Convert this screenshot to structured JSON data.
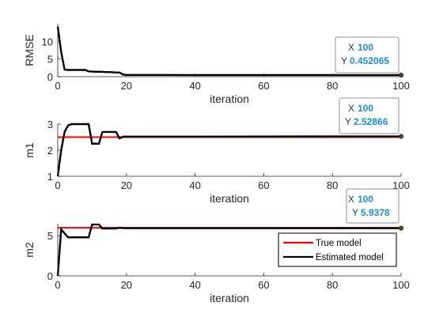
{
  "chart_data": [
    {
      "type": "line",
      "xlabel": "iteration",
      "ylabel": "RMSE",
      "xlim": [
        0,
        100
      ],
      "ylim": [
        0,
        15
      ],
      "xticks": [
        0,
        20,
        40,
        60,
        80,
        100
      ],
      "yticks": [
        0,
        5,
        10
      ],
      "grid": false,
      "series": [
        {
          "color": "#000000",
          "x": [
            0,
            1,
            2,
            3,
            4,
            5,
            6,
            7,
            8,
            9,
            10,
            11,
            12,
            13,
            14,
            15,
            16,
            17,
            18,
            19,
            20,
            30,
            40,
            50,
            60,
            70,
            80,
            90,
            100
          ],
          "y": [
            14.2,
            7.0,
            2.0,
            1.9,
            1.9,
            1.9,
            1.9,
            1.9,
            1.9,
            1.5,
            1.45,
            1.4,
            1.4,
            1.35,
            1.3,
            1.3,
            1.25,
            1.2,
            1.2,
            0.6,
            0.5,
            0.48,
            0.47,
            0.46,
            0.46,
            0.455,
            0.455,
            0.453,
            0.452065
          ]
        }
      ],
      "datatip": {
        "x_label": "X",
        "x_value": "100",
        "y_label": "Y",
        "y_value": "0.452065"
      }
    },
    {
      "type": "line",
      "xlabel": "iteration",
      "ylabel": "m1",
      "xlim": [
        0,
        100
      ],
      "ylim": [
        1,
        3
      ],
      "xticks": [
        0,
        20,
        40,
        60,
        80,
        100
      ],
      "yticks": [
        1,
        2,
        3
      ],
      "grid": false,
      "series": [
        {
          "color": "#ff0000",
          "x": [
            0,
            100
          ],
          "y": [
            2.5,
            2.5
          ]
        },
        {
          "color": "#000000",
          "x": [
            0,
            1,
            2,
            3,
            4,
            5,
            6,
            7,
            8,
            9,
            10,
            11,
            12,
            13,
            14,
            15,
            16,
            17,
            18,
            19,
            20,
            40,
            60,
            80,
            100
          ],
          "y": [
            1.0,
            2.0,
            2.7,
            2.95,
            3.0,
            3.0,
            3.0,
            3.0,
            3.0,
            3.0,
            2.25,
            2.25,
            2.25,
            2.7,
            2.7,
            2.7,
            2.7,
            2.7,
            2.45,
            2.52,
            2.52,
            2.52,
            2.525,
            2.528,
            2.52866
          ]
        }
      ],
      "datatip": {
        "x_label": "X",
        "x_value": "100",
        "y_label": "Y",
        "y_value": "2.52866"
      }
    },
    {
      "type": "line",
      "xlabel": "iteration",
      "ylabel": "m2",
      "xlim": [
        0,
        100
      ],
      "ylim": [
        0,
        6.5
      ],
      "xticks": [
        0,
        20,
        40,
        60,
        80,
        100
      ],
      "yticks": [
        0,
        5
      ],
      "grid": false,
      "legend_position": "bottom-right",
      "series": [
        {
          "name": "True model",
          "color": "#ff0000",
          "x": [
            0,
            100
          ],
          "y": [
            6.0,
            6.0
          ]
        },
        {
          "name": "Estimated model",
          "color": "#000000",
          "x": [
            0,
            1,
            2,
            3,
            4,
            5,
            6,
            7,
            8,
            9,
            10,
            11,
            12,
            13,
            14,
            15,
            16,
            17,
            18,
            19,
            20,
            40,
            60,
            80,
            100
          ],
          "y": [
            0.0,
            5.8,
            5.3,
            4.8,
            4.8,
            4.8,
            4.8,
            4.8,
            4.8,
            4.8,
            6.4,
            6.4,
            6.4,
            5.9,
            5.9,
            5.9,
            5.9,
            5.9,
            6.0,
            5.95,
            5.94,
            5.94,
            5.938,
            5.938,
            5.9378
          ]
        }
      ],
      "datatip": {
        "x_label": "X",
        "x_value": "100",
        "y_label": "Y",
        "y_value": "5.9378"
      }
    }
  ]
}
